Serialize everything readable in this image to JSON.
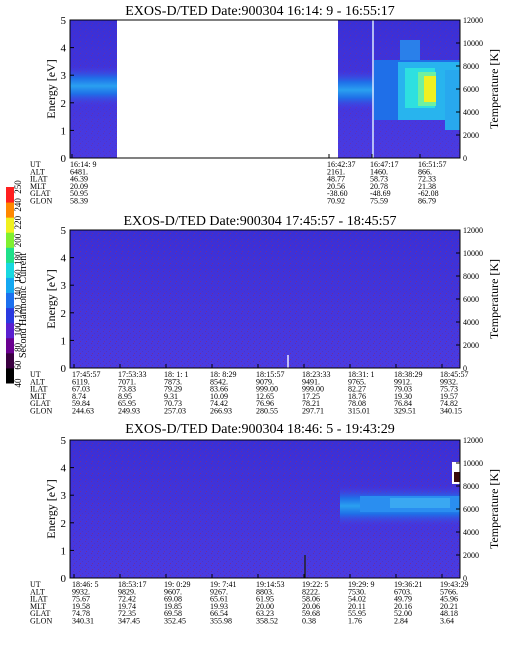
{
  "common": {
    "ylabel_left": "Energy [eV]",
    "ylabel_right": "Temperature [K]",
    "y_left_range": [
      0,
      5
    ],
    "y_left_ticks": [
      "0",
      "1",
      "2",
      "3",
      "4",
      "5"
    ],
    "y_right_range": [
      0,
      12000
    ],
    "y_right_ticks": [
      "0",
      "2000",
      "4000",
      "6000",
      "8000",
      "10000",
      "12000"
    ],
    "row_labels": [
      "UT",
      "ALT",
      "ILAT",
      "MLT",
      "GLAT",
      "GLON"
    ]
  },
  "colorbar": {
    "label": "Second Harmonic Current",
    "ticks": [
      "40",
      "60",
      "80",
      "100",
      "120",
      "140",
      "160",
      "180",
      "200",
      "220",
      "240",
      "250"
    ]
  },
  "chart_data": [
    {
      "type": "heatmap",
      "title": "EXOS-D/TED   Date:900304   16:14: 9 - 16:55:17",
      "ylim": [
        0,
        5
      ],
      "y2lim": [
        0,
        12000
      ],
      "data_gap": {
        "start_fraction": 0.23,
        "end_fraction": 0.65
      },
      "orbit_columns": [
        {
          "UT": "16:14: 9",
          "ALT": "6481.",
          "ILAT": "46.39",
          "MLT": "20.09",
          "GLAT": "50.95",
          "GLON": "58.39"
        },
        {
          "UT": "16:42:37",
          "ALT": "2161.",
          "ILAT": "48.77",
          "MLT": "20.56",
          "GLAT": "-38.60",
          "GLON": "70.92"
        },
        {
          "UT": "16:47:17",
          "ALT": "1460.",
          "ILAT": "58.73",
          "MLT": "20.78",
          "GLAT": "-48.69",
          "GLON": "75.59"
        },
        {
          "UT": "16:51:57",
          "ALT": "866.",
          "ILAT": "72.33",
          "MLT": "21.38",
          "GLAT": "-62.08",
          "GLON": "86.79"
        }
      ]
    },
    {
      "type": "heatmap",
      "title": "EXOS-D/TED   Date:900304   17:45:57 - 18:45:57",
      "ylim": [
        0,
        5
      ],
      "y2lim": [
        0,
        12000
      ],
      "orbit_columns": [
        {
          "UT": "17:45:57",
          "ALT": "6119.",
          "ILAT": "67.03",
          "MLT": "8.74",
          "GLAT": "59.84",
          "GLON": "244.63"
        },
        {
          "UT": "17:53:33",
          "ALT": "7071.",
          "ILAT": "73.83",
          "MLT": "8.95",
          "GLAT": "65.95",
          "GLON": "249.93"
        },
        {
          "UT": "18: 1: 1",
          "ALT": "7873.",
          "ILAT": "79.29",
          "MLT": "9.31",
          "GLAT": "70.73",
          "GLON": "257.03"
        },
        {
          "UT": "18: 8:29",
          "ALT": "8542.",
          "ILAT": "83.66",
          "MLT": "10.09",
          "GLAT": "74.42",
          "GLON": "266.93"
        },
        {
          "UT": "18:15:57",
          "ALT": "9079.",
          "ILAT": "999.00",
          "MLT": "12.65",
          "GLAT": "76.96",
          "GLON": "280.55"
        },
        {
          "UT": "18:23:33",
          "ALT": "9491.",
          "ILAT": "999.00",
          "MLT": "17.25",
          "GLAT": "78.21",
          "GLON": "297.71"
        },
        {
          "UT": "18:31: 1",
          "ALT": "9765.",
          "ILAT": "82.27",
          "MLT": "18.76",
          "GLAT": "78.08",
          "GLON": "315.01"
        },
        {
          "UT": "18:38:29",
          "ALT": "9912.",
          "ILAT": "79.03",
          "MLT": "19.30",
          "GLAT": "76.84",
          "GLON": "329.51"
        },
        {
          "UT": "18:45:57",
          "ALT": "9932.",
          "ILAT": "75.73",
          "MLT": "19.57",
          "GLAT": "74.82",
          "GLON": "340.15"
        }
      ]
    },
    {
      "type": "heatmap",
      "title": "EXOS-D/TED   Date:900304   18:46: 5 - 19:43:29",
      "ylim": [
        0,
        5
      ],
      "y2lim": [
        0,
        12000
      ],
      "orbit_columns": [
        {
          "UT": "18:46: 5",
          "ALT": "9932.",
          "ILAT": "75.67",
          "MLT": "19.58",
          "GLAT": "74.78",
          "GLON": "340.31"
        },
        {
          "UT": "18:53:17",
          "ALT": "9829.",
          "ILAT": "72.42",
          "MLT": "19.74",
          "GLAT": "72.35",
          "GLON": "347.45"
        },
        {
          "UT": "19: 0:29",
          "ALT": "9607.",
          "ILAT": "69.08",
          "MLT": "19.85",
          "GLAT": "69.58",
          "GLON": "352.45"
        },
        {
          "UT": "19: 7:41",
          "ALT": "9267.",
          "ILAT": "65.61",
          "MLT": "19.93",
          "GLAT": "66.54",
          "GLON": "355.98"
        },
        {
          "UT": "19:14:53",
          "ALT": "8803.",
          "ILAT": "61.95",
          "MLT": "20.00",
          "GLAT": "63.23",
          "GLON": "358.52"
        },
        {
          "UT": "19:22: 5",
          "ALT": "8222.",
          "ILAT": "58.06",
          "MLT": "20.06",
          "GLAT": "59.68",
          "GLON": "0.38"
        },
        {
          "UT": "19:29: 9",
          "ALT": "7530.",
          "ILAT": "54.02",
          "MLT": "20.11",
          "GLAT": "55.95",
          "GLON": "1.76"
        },
        {
          "UT": "19:36:21",
          "ALT": "6703.",
          "ILAT": "49.79",
          "MLT": "20.16",
          "GLAT": "52.00",
          "GLON": "2.84"
        },
        {
          "UT": "19:43:29",
          "ALT": "5766.",
          "ILAT": "45.96",
          "MLT": "20.21",
          "GLAT": "48.18",
          "GLON": "3.64"
        }
      ]
    }
  ]
}
